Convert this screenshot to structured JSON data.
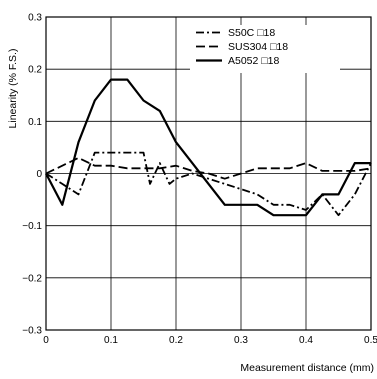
{
  "chart_data": {
    "type": "line",
    "xlabel": "Measurement distance (mm)",
    "ylabel": "Linearity (% F.S.)",
    "xlim": [
      0,
      0.5
    ],
    "ylim": [
      -0.3,
      0.3
    ],
    "x_ticks": [
      0,
      0.1,
      0.2,
      0.3,
      0.4,
      0.5
    ],
    "x_tick_labels": [
      "0",
      "0.1",
      "0.2",
      "0.3",
      "0.4",
      "0.5"
    ],
    "y_ticks": [
      -0.3,
      -0.2,
      -0.1,
      0,
      0.1,
      0.2,
      0.3
    ],
    "y_tick_labels": [
      "−0.3",
      "−0.2",
      "−0.1",
      "0",
      "0.1",
      "0.2",
      "0.3"
    ],
    "grid": true,
    "legend_position": "top-right",
    "series": [
      {
        "name": "S50C □18",
        "style": "dash-dot",
        "x": [
          0,
          0.025,
          0.05,
          0.075,
          0.1,
          0.125,
          0.15,
          0.16,
          0.175,
          0.19,
          0.2,
          0.225,
          0.25,
          0.275,
          0.3,
          0.325,
          0.35,
          0.375,
          0.4,
          0.425,
          0.45,
          0.475,
          0.5
        ],
        "y": [
          0,
          -0.02,
          -0.04,
          0.04,
          0.04,
          0.04,
          0.04,
          -0.02,
          0.02,
          -0.02,
          -0.01,
          0,
          -0.01,
          -0.02,
          -0.03,
          -0.04,
          -0.06,
          -0.06,
          -0.07,
          -0.04,
          -0.08,
          -0.04,
          0.02
        ]
      },
      {
        "name": "SUS304 □18",
        "style": "dashed",
        "x": [
          0,
          0.025,
          0.05,
          0.075,
          0.1,
          0.125,
          0.15,
          0.175,
          0.2,
          0.225,
          0.25,
          0.275,
          0.3,
          0.325,
          0.35,
          0.375,
          0.4,
          0.425,
          0.45,
          0.475,
          0.5
        ],
        "y": [
          0,
          0.015,
          0.03,
          0.015,
          0.015,
          0.01,
          0.01,
          0.01,
          0.015,
          0.005,
          0,
          -0.01,
          0,
          0.01,
          0.01,
          0.01,
          0.02,
          0.005,
          0.005,
          0.005,
          0.01
        ]
      },
      {
        "name": "A5052 □18",
        "style": "solid",
        "x": [
          0,
          0.025,
          0.05,
          0.075,
          0.1,
          0.125,
          0.15,
          0.175,
          0.2,
          0.225,
          0.25,
          0.275,
          0.3,
          0.325,
          0.35,
          0.375,
          0.4,
          0.425,
          0.45,
          0.475,
          0.5
        ],
        "y": [
          0,
          -0.06,
          0.06,
          0.14,
          0.18,
          0.18,
          0.14,
          0.12,
          0.06,
          0.02,
          -0.02,
          -0.06,
          -0.06,
          -0.06,
          -0.08,
          -0.08,
          -0.08,
          -0.04,
          -0.04,
          0.02,
          0.02
        ]
      }
    ]
  }
}
